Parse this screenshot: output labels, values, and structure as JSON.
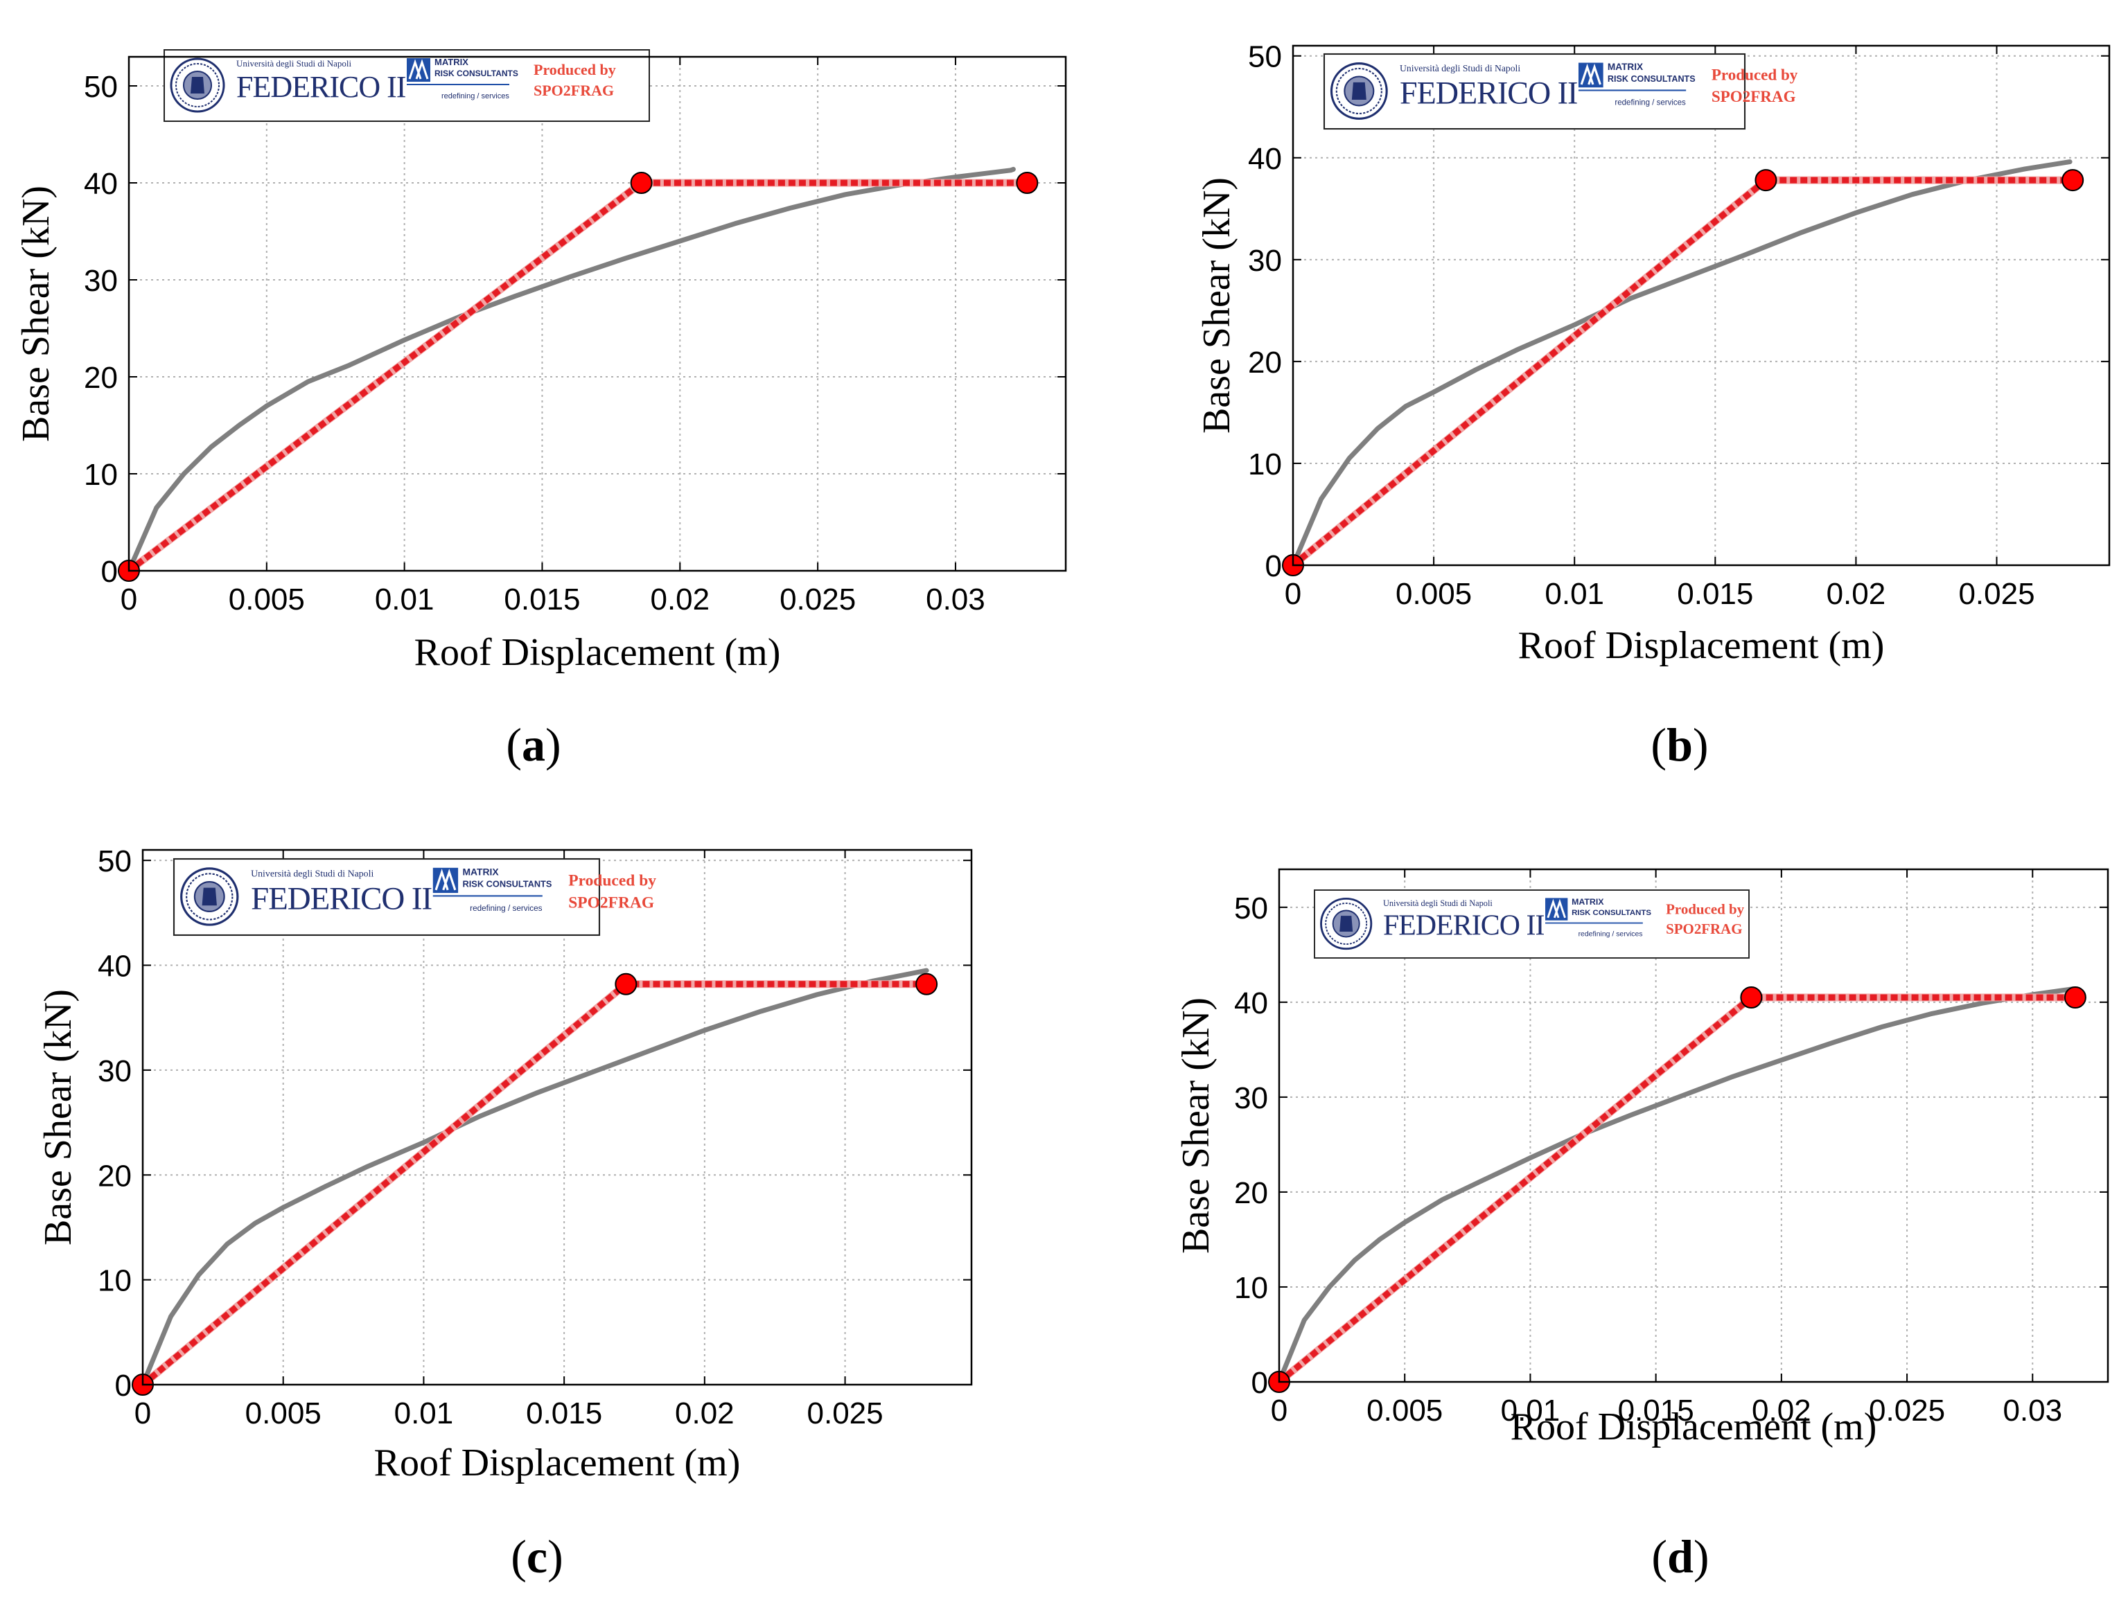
{
  "figure": {
    "colors": {
      "pushover": "#7f7f7f",
      "bilinear": "#e51c23",
      "marker": "#ff0000",
      "grid": "#b0b0b0"
    },
    "logo": {
      "university_line": "Università degli Studi di Napoli",
      "federico": "FEDERICO II",
      "matrix_line1": "MATRIX",
      "matrix_line2": "RISK CONSULTANTS",
      "tagline": "redefining / services",
      "produced_line1": "Produced by",
      "produced_line2": "SPO2FRAG"
    }
  },
  "chart_data": [
    {
      "panel": "a",
      "caption_letter": "a",
      "type": "line",
      "xlabel": "Roof Displacement (m)",
      "ylabel": "Base Shear (kN)",
      "xlim": [
        0,
        0.034
      ],
      "ylim": [
        0,
        53
      ],
      "xticks": [
        0,
        0.005,
        0.01,
        0.015,
        0.02,
        0.025,
        0.03
      ],
      "xtick_labels": [
        "0",
        "0.005",
        "0.01",
        "0.015",
        "0.02",
        "0.025",
        "0.03"
      ],
      "yticks": [
        0,
        10,
        20,
        30,
        40,
        50
      ],
      "ytick_labels": [
        "0",
        "10",
        "20",
        "30",
        "40",
        "50"
      ],
      "grid": true,
      "series": [
        {
          "name": "pushover curve",
          "x": [
            0,
            0.001,
            0.002,
            0.003,
            0.004,
            0.005,
            0.0065,
            0.008,
            0.01,
            0.012,
            0.014,
            0.016,
            0.018,
            0.02,
            0.022,
            0.024,
            0.026,
            0.028,
            0.03,
            0.032,
            0.0321
          ],
          "y": [
            0,
            6.5,
            10,
            12.8,
            15,
            17,
            19.5,
            21.2,
            23.8,
            26.2,
            28.3,
            30.3,
            32.2,
            34,
            35.8,
            37.4,
            38.8,
            39.8,
            40.6,
            41.3,
            41.4
          ]
        },
        {
          "name": "bilinear idealization",
          "x": [
            0,
            0.0186,
            0.0326
          ],
          "y": [
            0,
            40,
            40
          ]
        }
      ]
    },
    {
      "panel": "b",
      "caption_letter": "b",
      "type": "line",
      "xlabel": "Roof Displacement (m)",
      "ylabel": "Base Shear (kN)",
      "xlim": [
        0,
        0.029
      ],
      "ylim": [
        0,
        51
      ],
      "xticks": [
        0,
        0.005,
        0.01,
        0.015,
        0.02,
        0.025
      ],
      "xtick_labels": [
        "0",
        "0.005",
        "0.01",
        "0.015",
        "0.02",
        "0.025"
      ],
      "yticks": [
        0,
        10,
        20,
        30,
        40,
        50
      ],
      "ytick_labels": [
        "0",
        "10",
        "20",
        "30",
        "40",
        "50"
      ],
      "grid": true,
      "series": [
        {
          "name": "pushover curve",
          "x": [
            0,
            0.001,
            0.002,
            0.003,
            0.004,
            0.005,
            0.0065,
            0.008,
            0.01,
            0.012,
            0.014,
            0.016,
            0.018,
            0.02,
            0.022,
            0.024,
            0.026,
            0.0276
          ],
          "y": [
            0,
            6.5,
            10.5,
            13.4,
            15.6,
            17,
            19.2,
            21.2,
            23.6,
            26.2,
            28.3,
            30.4,
            32.6,
            34.6,
            36.4,
            37.8,
            38.9,
            39.6
          ]
        },
        {
          "name": "bilinear idealization",
          "x": [
            0,
            0.0168,
            0.0277
          ],
          "y": [
            0,
            37.8,
            37.8
          ]
        }
      ]
    },
    {
      "panel": "c",
      "caption_letter": "c",
      "type": "line",
      "xlabel": "Roof Displacement (m)",
      "ylabel": "Base Shear (kN)",
      "xlim": [
        0,
        0.0295
      ],
      "ylim": [
        0,
        51
      ],
      "xticks": [
        0,
        0.005,
        0.01,
        0.015,
        0.02,
        0.025
      ],
      "xtick_labels": [
        "0",
        "0.005",
        "0.01",
        "0.015",
        "0.02",
        "0.025"
      ],
      "yticks": [
        0,
        10,
        20,
        30,
        40,
        50
      ],
      "ytick_labels": [
        "0",
        "10",
        "20",
        "30",
        "40",
        "50"
      ],
      "grid": true,
      "series": [
        {
          "name": "pushover curve",
          "x": [
            0,
            0.001,
            0.002,
            0.003,
            0.004,
            0.005,
            0.0065,
            0.008,
            0.01,
            0.012,
            0.014,
            0.016,
            0.018,
            0.02,
            0.022,
            0.024,
            0.026,
            0.0279
          ],
          "y": [
            0,
            6.5,
            10.5,
            13.4,
            15.4,
            16.9,
            18.9,
            20.8,
            23.1,
            25.6,
            27.8,
            29.8,
            31.8,
            33.8,
            35.6,
            37.2,
            38.5,
            39.5
          ]
        },
        {
          "name": "bilinear idealization",
          "x": [
            0,
            0.0172,
            0.0279
          ],
          "y": [
            0,
            38.2,
            38.2
          ]
        }
      ]
    },
    {
      "panel": "d",
      "caption_letter": "d",
      "type": "line",
      "xlabel": "Roof Displacement (m)",
      "ylabel": "Base Shear (kN)",
      "xlim": [
        0,
        0.033
      ],
      "ylim": [
        0,
        54
      ],
      "xticks": [
        0,
        0.005,
        0.01,
        0.015,
        0.02,
        0.025,
        0.03
      ],
      "xtick_labels": [
        "0",
        "0.005",
        "0.01",
        "0.015",
        "0.02",
        "0.025",
        "0.03"
      ],
      "yticks": [
        0,
        10,
        20,
        30,
        40,
        50
      ],
      "ytick_labels": [
        "0",
        "10",
        "20",
        "30",
        "40",
        "50"
      ],
      "grid": true,
      "series": [
        {
          "name": "pushover curve",
          "x": [
            0,
            0.001,
            0.002,
            0.003,
            0.004,
            0.005,
            0.0065,
            0.008,
            0.01,
            0.012,
            0.014,
            0.016,
            0.018,
            0.02,
            0.022,
            0.024,
            0.026,
            0.028,
            0.03,
            0.0316
          ],
          "y": [
            0,
            6.5,
            10,
            12.8,
            15,
            16.8,
            19.2,
            21.1,
            23.6,
            26,
            28.1,
            30.1,
            32.1,
            33.9,
            35.7,
            37.4,
            38.8,
            39.9,
            40.8,
            41.4
          ]
        },
        {
          "name": "bilinear idealization",
          "x": [
            0,
            0.0188,
            0.0317
          ],
          "y": [
            0,
            40.5,
            40.5
          ]
        }
      ]
    }
  ]
}
